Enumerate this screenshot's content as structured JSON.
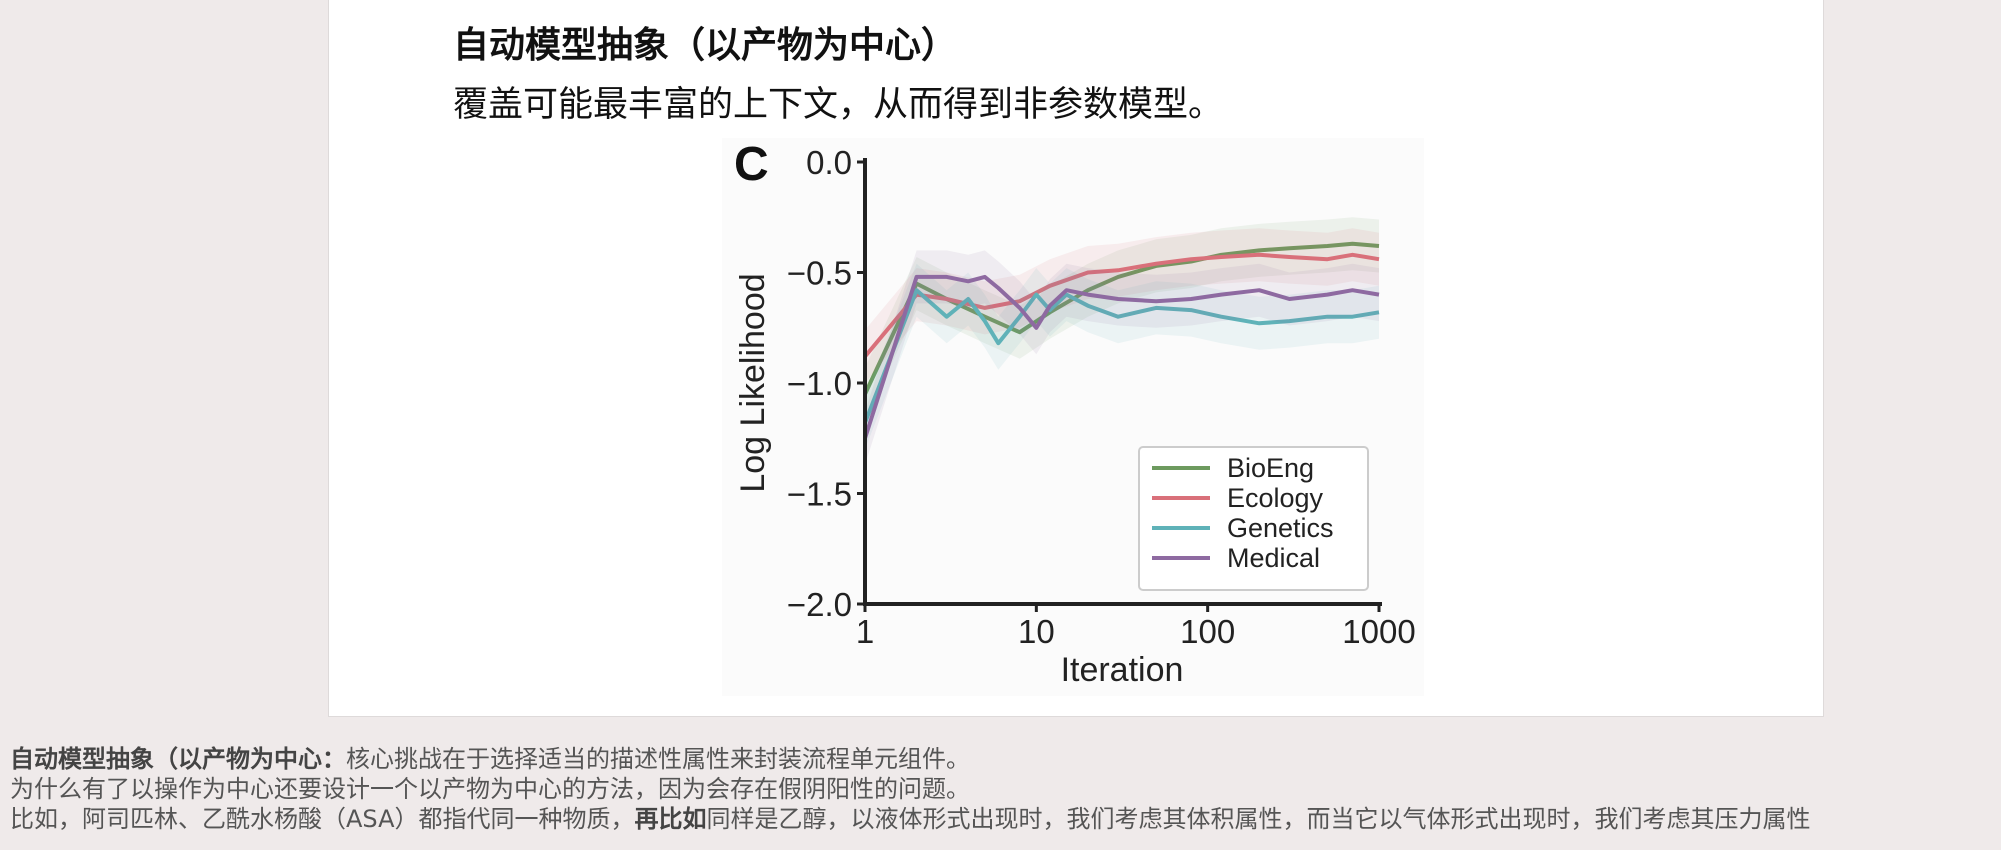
{
  "slide": {
    "title": "自动模型抽象（以产物为中心）",
    "subtitle": "覆盖可能最丰富的上下文，从而得到非参数模型。"
  },
  "chart_data": {
    "type": "line",
    "panel_label": "C",
    "xlabel": "Iteration",
    "ylabel": "Log Likelihood",
    "x_scale": "log",
    "xlim": [
      1,
      1000
    ],
    "ylim": [
      -2.0,
      0.0
    ],
    "x_ticks": [
      {
        "value": 1,
        "label": "1"
      },
      {
        "value": 10,
        "label": "10"
      },
      {
        "value": 100,
        "label": "100"
      },
      {
        "value": 1000,
        "label": "1000"
      }
    ],
    "y_ticks": [
      {
        "value": 0.0,
        "label": "0.0"
      },
      {
        "value": -0.5,
        "label": "−0.5"
      },
      {
        "value": -1.0,
        "label": "−1.0"
      },
      {
        "value": -1.5,
        "label": "−1.5"
      },
      {
        "value": -2.0,
        "label": "−2.0"
      }
    ],
    "legend_position": "lower-right",
    "series": [
      {
        "name": "BioEng",
        "color": "#6d9a5f",
        "x": [
          1,
          2,
          3,
          5,
          8,
          12,
          20,
          30,
          50,
          80,
          120,
          200,
          300,
          500,
          700,
          1000
        ],
        "y": [
          -1.05,
          -0.55,
          -0.62,
          -0.7,
          -0.77,
          -0.68,
          -0.58,
          -0.52,
          -0.47,
          -0.45,
          -0.42,
          -0.4,
          -0.39,
          -0.38,
          -0.37,
          -0.38
        ]
      },
      {
        "name": "Ecology",
        "color": "#d9707a",
        "x": [
          1,
          2,
          3,
          5,
          8,
          12,
          20,
          30,
          50,
          80,
          120,
          200,
          300,
          500,
          700,
          1000
        ],
        "y": [
          -0.88,
          -0.6,
          -0.62,
          -0.66,
          -0.63,
          -0.56,
          -0.5,
          -0.49,
          -0.46,
          -0.44,
          -0.43,
          -0.42,
          -0.43,
          -0.44,
          -0.42,
          -0.44
        ]
      },
      {
        "name": "Genetics",
        "color": "#5fb2b8",
        "x": [
          1,
          2,
          3,
          4,
          5,
          6,
          8,
          10,
          12,
          15,
          20,
          30,
          50,
          80,
          120,
          200,
          300,
          500,
          700,
          1000
        ],
        "y": [
          -1.18,
          -0.58,
          -0.7,
          -0.62,
          -0.72,
          -0.82,
          -0.7,
          -0.6,
          -0.67,
          -0.6,
          -0.65,
          -0.7,
          -0.66,
          -0.67,
          -0.7,
          -0.73,
          -0.72,
          -0.7,
          -0.7,
          -0.68
        ]
      },
      {
        "name": "Medical",
        "color": "#8e6aa1",
        "x": [
          1,
          2,
          3,
          4,
          5,
          6,
          8,
          10,
          12,
          15,
          20,
          30,
          50,
          80,
          120,
          200,
          300,
          500,
          700,
          1000
        ],
        "y": [
          -1.25,
          -0.52,
          -0.52,
          -0.54,
          -0.52,
          -0.57,
          -0.66,
          -0.75,
          -0.65,
          -0.58,
          -0.6,
          -0.62,
          -0.63,
          -0.62,
          -0.6,
          -0.58,
          -0.62,
          -0.6,
          -0.58,
          -0.6
        ]
      }
    ]
  },
  "notes": {
    "line1_bold": "自动模型抽象（以产物为中心：",
    "line1_text": "核心挑战在于选择适当的描述性属性来封装流程单元组件。",
    "line2": "为什么有了以操作为中心还要设计一个以产物为中心的方法，因为会存在假阴阳性的问题。",
    "line3_a": "比如，阿司匹林、乙酰水杨酸（ASA）都指代同一种物质，",
    "line3_bold": "再比如",
    "line3_b": "同样是乙醇，以液体形式出现时，我们考虑其体积属性，而当它以气体形式出现时，我们考虑其压力属性"
  }
}
